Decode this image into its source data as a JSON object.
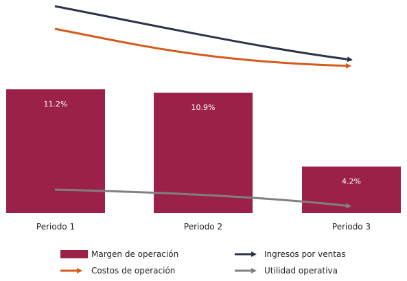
{
  "chart_data": {
    "type": "bar",
    "categories": [
      "Periodo 1",
      "Periodo 2",
      "Periodo 3"
    ],
    "series": [
      {
        "name": "Margen de operación",
        "kind": "bar",
        "color": "#9b2148",
        "values": [
          11.2,
          10.9,
          4.2
        ],
        "labels": [
          "11.2%",
          "10.9%",
          "4.2%"
        ]
      },
      {
        "name": "Ingresos por ventas",
        "kind": "trend-arrow",
        "color": "#2b3446"
      },
      {
        "name": "Costos de operación",
        "kind": "trend-arrow",
        "color": "#d45a1b"
      },
      {
        "name": "Utilidad operativa",
        "kind": "trend-arrow",
        "color": "#808080"
      }
    ],
    "title": "",
    "xlabel": "",
    "ylabel": "",
    "ylim": [
      0,
      11.2
    ],
    "grid": false,
    "legend_position": "bottom"
  }
}
